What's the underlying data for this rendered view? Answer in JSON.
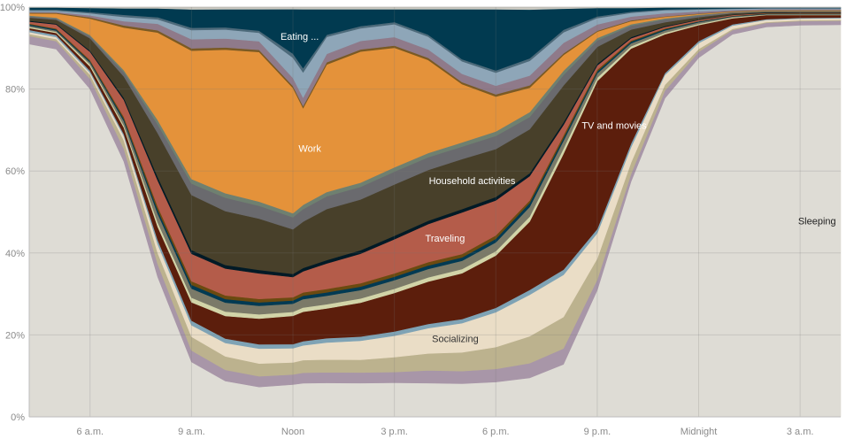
{
  "chart_data": {
    "type": "area",
    "stacked": true,
    "normalized": true,
    "x_hours": [
      4.2,
      5,
      6,
      7,
      8,
      9,
      10,
      11,
      12,
      12.3,
      13,
      14,
      15,
      16,
      17,
      18,
      19,
      20,
      21,
      22,
      23,
      24,
      25,
      26,
      27,
      28.2
    ],
    "x_ticks": [
      {
        "hour": 6,
        "label": "6 a.m."
      },
      {
        "hour": 9,
        "label": "9 a.m."
      },
      {
        "hour": 12,
        "label": "Noon"
      },
      {
        "hour": 15,
        "label": "3 p.m."
      },
      {
        "hour": 18,
        "label": "6 p.m."
      },
      {
        "hour": 21,
        "label": "9 p.m."
      },
      {
        "hour": 24,
        "label": "Midnight"
      },
      {
        "hour": 27,
        "label": "3 a.m."
      }
    ],
    "y_ticks": [
      {
        "value": 0,
        "label": "0%"
      },
      {
        "value": 20,
        "label": "20%"
      },
      {
        "value": 40,
        "label": "40%"
      },
      {
        "value": 60,
        "label": "60%"
      },
      {
        "value": 80,
        "label": "80%"
      },
      {
        "value": 100,
        "label": "100%"
      }
    ],
    "ylim": [
      0,
      100
    ],
    "grid": true,
    "series": [
      {
        "name": "Sleeping",
        "color": "#dedcd5",
        "label_color": "#222222",
        "label_at": 27.5,
        "values": [
          93,
          91,
          80,
          60,
          32,
          12,
          8,
          7,
          8,
          8,
          8,
          8,
          8,
          8,
          8,
          8,
          8,
          10,
          30,
          62,
          82,
          90,
          93,
          94,
          95,
          95
        ]
      },
      {
        "color": "#a896a8",
        "values": [
          2,
          2,
          2.5,
          3,
          3,
          2.5,
          2.5,
          2.5,
          2.5,
          2.5,
          2.5,
          2.5,
          2.5,
          3,
          3,
          3,
          3,
          3,
          2.5,
          2,
          2,
          1.5,
          1,
          1,
          1,
          1
        ]
      },
      {
        "color": "#bcb28e",
        "values": [
          0.5,
          0.5,
          1,
          2,
          2.5,
          3,
          3,
          3,
          3,
          3,
          3,
          3,
          3.5,
          4,
          4.5,
          5,
          5.5,
          6,
          5,
          3,
          1.5,
          0.7,
          0.3,
          0.2,
          0.2,
          0.2
        ]
      },
      {
        "name": "Socializing",
        "color": "#eaddc6",
        "label_color": "#333333",
        "label_at": 16.8,
        "values": [
          0.5,
          0.5,
          0.5,
          1,
          2,
          2.5,
          3,
          3.5,
          3.5,
          3.5,
          4,
          4.5,
          5,
          6,
          7,
          8,
          8.5,
          8,
          6,
          4,
          2.5,
          1.5,
          0.8,
          0.5,
          0.4,
          0.4
        ]
      },
      {
        "color": "#7fa3b5",
        "values": [
          0.5,
          0.5,
          0.5,
          0.5,
          1,
          1,
          1,
          1,
          1,
          1,
          1,
          1,
          1,
          1,
          1,
          1,
          1,
          1,
          1,
          1,
          0.5,
          0.5,
          0.3,
          0.2,
          0.2,
          0.2
        ]
      },
      {
        "name": "TV and movies",
        "color": "#5c1e0c",
        "label_color": "#ffffff",
        "label_at": 21.5,
        "values": [
          0.5,
          0.5,
          1,
          1.5,
          3,
          4,
          5,
          6,
          7,
          7,
          7,
          8,
          9,
          10,
          11,
          12,
          14,
          22,
          35,
          25,
          10,
          4,
          1.5,
          1,
          0.7,
          0.6
        ]
      },
      {
        "color": "#d2d4a8",
        "values": [
          0.3,
          0.3,
          0.5,
          0.5,
          1,
          1,
          1,
          1,
          1,
          1,
          1,
          1,
          1,
          1,
          1,
          1,
          1,
          1,
          0.8,
          0.6,
          0.4,
          0.3,
          0.2,
          0.1,
          0.1,
          0.1
        ]
      },
      {
        "color": "#7b7a68",
        "values": [
          0.3,
          0.3,
          0.5,
          1,
          2,
          2,
          2,
          2,
          2,
          2,
          2,
          2,
          2,
          2,
          2,
          2,
          2,
          1.5,
          1,
          0.8,
          0.6,
          0.4,
          0.2,
          0.1,
          0.1,
          0.1
        ]
      },
      {
        "color": "#003a53",
        "values": [
          0.3,
          0.3,
          0.3,
          0.5,
          0.8,
          0.8,
          0.8,
          0.8,
          0.8,
          0.8,
          0.8,
          0.8,
          0.8,
          0.8,
          0.8,
          0.8,
          0.8,
          0.5,
          0.5,
          0.4,
          0.3,
          0.2,
          0.1,
          0.1,
          0.1,
          0.1
        ]
      },
      {
        "color": "#6b4a10",
        "values": [
          0.2,
          0.2,
          0.3,
          0.5,
          0.8,
          0.8,
          0.8,
          0.8,
          0.8,
          0.8,
          0.8,
          0.8,
          0.8,
          0.8,
          0.8,
          0.8,
          0.5,
          0.5,
          0.4,
          0.3,
          0.2,
          0.1,
          0.1,
          0.1,
          0.1,
          0.1
        ]
      },
      {
        "name": "Traveling",
        "color": "#b45c4a",
        "label_color": "#ffffff",
        "label_at": 16.5,
        "values": [
          0.5,
          1,
          2,
          4,
          6,
          6,
          6,
          6,
          5,
          5,
          6,
          7,
          8,
          9,
          10,
          8,
          5,
          2,
          1,
          0.6,
          0.4,
          0.3,
          0.2,
          0.1,
          0.1,
          0.1
        ]
      },
      {
        "color": "#001a26",
        "values": [
          0.2,
          0.2,
          0.3,
          0.5,
          0.8,
          0.8,
          0.8,
          0.8,
          0.8,
          0.8,
          0.8,
          0.8,
          0.8,
          0.8,
          0.8,
          0.8,
          0.6,
          0.5,
          0.4,
          0.3,
          0.2,
          0.1,
          0.1,
          0.1,
          0.1,
          0.1
        ]
      },
      {
        "name": "Household activities",
        "color": "#48402a",
        "label_color": "#ffffff",
        "label_at": 17.3,
        "values": [
          0.8,
          1,
          3,
          5,
          10,
          12,
          12,
          12,
          11,
          11,
          12,
          12,
          12,
          12,
          12,
          11,
          9,
          7,
          4,
          2,
          1,
          0.6,
          0.3,
          0.2,
          0.2,
          0.2
        ]
      },
      {
        "color": "#6a6a6e",
        "values": [
          0.3,
          0.3,
          0.5,
          1,
          2,
          2.5,
          3,
          3,
          3,
          3,
          3,
          3,
          3,
          3,
          3,
          3,
          2.5,
          2,
          1.5,
          1,
          0.7,
          0.4,
          0.2,
          0.1,
          0.1,
          0.1
        ]
      },
      {
        "color": "#6f8070",
        "values": [
          0.2,
          0.2,
          0.3,
          0.5,
          1,
          1,
          1,
          1,
          1,
          1,
          1,
          1,
          1,
          1,
          1,
          1,
          1,
          0.8,
          0.6,
          0.4,
          0.3,
          0.2,
          0.1,
          0.1,
          0.1,
          0.1
        ]
      },
      {
        "name": "Work",
        "color": "#e4923a",
        "label_color": "#ffffff",
        "label_at": 12.5,
        "values": [
          0.5,
          1,
          4,
          10,
          20,
          28,
          32,
          35,
          31,
          23,
          30,
          31,
          28,
          22,
          14,
          8,
          5,
          3,
          1.5,
          0.8,
          0.4,
          0.2,
          0.1,
          0.1,
          0.1,
          0.1
        ]
      },
      {
        "color": "#7a5a24",
        "values": [
          0.2,
          0.2,
          0.3,
          0.5,
          0.5,
          0.5,
          0.5,
          0.5,
          0.5,
          0.5,
          0.5,
          0.5,
          0.5,
          0.5,
          0.5,
          0.5,
          0.5,
          0.3,
          0.2,
          0.2,
          0.1,
          0.1,
          0.1,
          0.1,
          0.1,
          0.1
        ]
      },
      {
        "color": "#8f7a8a",
        "values": [
          0.2,
          0.2,
          0.5,
          1,
          1.5,
          2,
          2,
          2,
          2,
          2,
          2,
          2,
          2,
          2,
          2,
          2,
          2,
          2,
          1.5,
          1,
          0.8,
          0.5,
          0.3,
          0.2,
          0.2,
          0.2
        ]
      },
      {
        "color": "#8ea6b8",
        "values": [
          0.3,
          0.3,
          0.5,
          1,
          1,
          2,
          2,
          2,
          5,
          6,
          4,
          3,
          3,
          3,
          3,
          3,
          3,
          2,
          1.5,
          1,
          0.8,
          0.5,
          0.3,
          0.2,
          0.2,
          0.2
        ]
      },
      {
        "color": "#4d6a7a",
        "values": [
          0.3,
          0.3,
          0.3,
          0.5,
          0.5,
          0.5,
          0.5,
          0.5,
          1,
          1,
          0.5,
          0.5,
          0.5,
          0.5,
          0.5,
          0.5,
          0.5,
          0.5,
          0.4,
          0.3,
          0.2,
          0.2,
          0.1,
          0.1,
          0.1,
          0.1
        ]
      },
      {
        "name": "Eating ...",
        "color": "#013a50",
        "label_color": "#ffffff",
        "label_at": 12.2,
        "values": [
          0.5,
          0.5,
          1,
          1.5,
          2,
          4,
          4,
          5,
          11,
          14,
          6,
          4,
          3,
          6,
          12,
          14,
          10,
          4,
          2,
          1,
          0.5,
          0.3,
          0.2,
          0.1,
          0.1,
          0.1
        ]
      },
      {
        "color": "#c9c7bf",
        "values": [
          0.1,
          0.1,
          0.2,
          0.3,
          0.3,
          0.5,
          0.5,
          0.5,
          0.5,
          0.5,
          0.5,
          0.5,
          0.5,
          0.5,
          0.5,
          0.5,
          0.5,
          0.3,
          0.2,
          0.2,
          0.1,
          0.1,
          0.1,
          0.1,
          0.1,
          0.1
        ]
      }
    ]
  }
}
